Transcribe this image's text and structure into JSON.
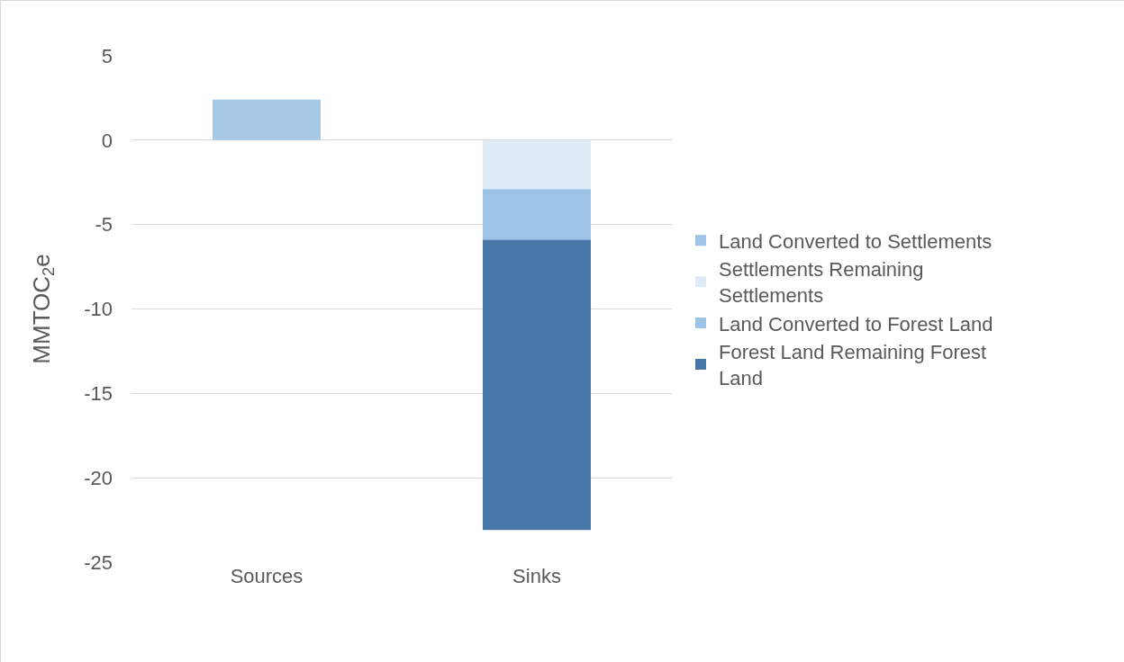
{
  "chart_data": {
    "type": "bar",
    "stacked": true,
    "ylabel": "MMTOC$_{2}$e",
    "categories": [
      "Sources",
      "Sinks"
    ],
    "series": [
      {
        "name": "Land Converted to Settlements",
        "color": "#9dc3e6",
        "values": [
          2.4,
          null
        ]
      },
      {
        "name": "Settlements Remaining Settlements",
        "color": "#deebf7",
        "values": [
          null,
          -2.9
        ]
      },
      {
        "name": "Land Converted to Forest Land",
        "color": "#9dc3e6",
        "values": [
          null,
          -3.0
        ]
      },
      {
        "name": "Forest Land Remaining Forest Land",
        "color": "#4677a8",
        "values": [
          null,
          -17.2
        ]
      }
    ],
    "ylim": [
      -25,
      5
    ],
    "yticks": [
      -25,
      -20,
      -15,
      -10,
      -5,
      0,
      5
    ],
    "grid": "y",
    "legend": "right"
  }
}
